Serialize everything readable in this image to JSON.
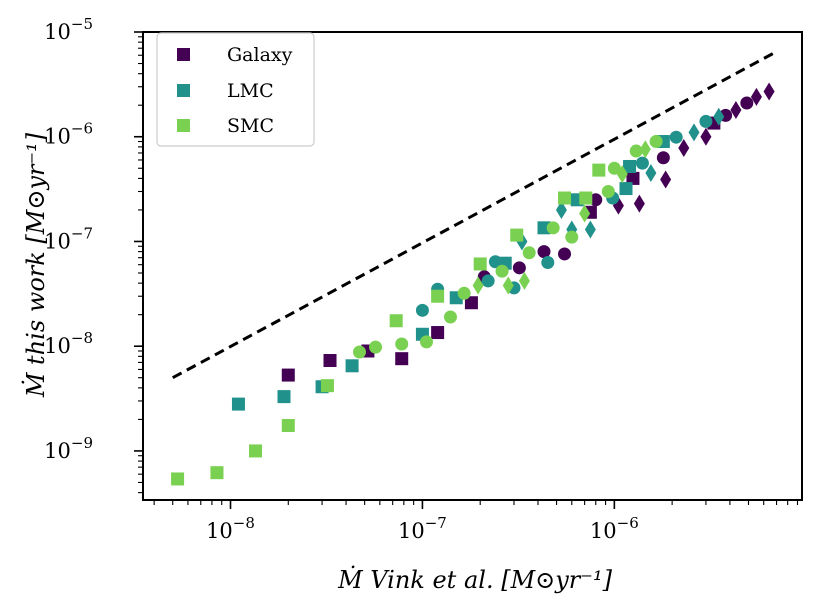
{
  "chart_data": {
    "type": "scatter",
    "title": "",
    "xlabel": "Ṁ Vink et al. [M⊙yr⁻¹]",
    "ylabel": "Ṁ this work [M⊙yr⁻¹]",
    "xscale": "log",
    "yscale": "log",
    "xlim": [
      3.5e-09,
      9.5e-06
    ],
    "ylim": [
      3.4e-10,
      1e-05
    ],
    "x_ticks": [
      {
        "value": 1e-08,
        "mantissa": "10",
        "exponent": "−8"
      },
      {
        "value": 1e-07,
        "mantissa": "10",
        "exponent": "−7"
      },
      {
        "value": 1e-06,
        "mantissa": "10",
        "exponent": "−6"
      }
    ],
    "y_ticks": [
      {
        "value": 1e-09,
        "mantissa": "10",
        "exponent": "−9"
      },
      {
        "value": 1e-08,
        "mantissa": "10",
        "exponent": "−8"
      },
      {
        "value": 1e-07,
        "mantissa": "10",
        "exponent": "−7"
      },
      {
        "value": 1e-06,
        "mantissa": "10",
        "exponent": "−6"
      },
      {
        "value": 1e-05,
        "mantissa": "10",
        "exponent": "−5"
      }
    ],
    "legend": {
      "position": "upper-left",
      "entries": [
        {
          "label": "Galaxy",
          "color": "#440154",
          "marker": "square"
        },
        {
          "label": "LMC",
          "color": "#21918c",
          "marker": "square"
        },
        {
          "label": "SMC",
          "color": "#7ad151",
          "marker": "square"
        }
      ]
    },
    "reference_line": {
      "style": "dashed",
      "color": "#000000",
      "x": [
        5e-09,
        7e-06
      ],
      "y": [
        5e-09,
        6.5e-06
      ]
    },
    "series": [
      {
        "name": "Galaxy",
        "color": "#440154",
        "points": [
          {
            "x": 1.2e-07,
            "y": 1.35e-08,
            "m": "s"
          },
          {
            "x": 1.8e-07,
            "y": 2.6e-08,
            "m": "s"
          },
          {
            "x": 2e-08,
            "y": 5.3e-09,
            "m": "s"
          },
          {
            "x": 3.3e-08,
            "y": 7.3e-09,
            "m": "s"
          },
          {
            "x": 7.8e-08,
            "y": 7.6e-09,
            "m": "s"
          },
          {
            "x": 5.2e-08,
            "y": 9e-09,
            "m": "s"
          },
          {
            "x": 2.1e-07,
            "y": 4.6e-08,
            "m": "o"
          },
          {
            "x": 3.2e-07,
            "y": 5.6e-08,
            "m": "o"
          },
          {
            "x": 4.3e-07,
            "y": 8e-08,
            "m": "o"
          },
          {
            "x": 5.5e-07,
            "y": 7.6e-08,
            "m": "o"
          },
          {
            "x": 7.5e-07,
            "y": 1.9e-07,
            "m": "s"
          },
          {
            "x": 8e-07,
            "y": 2.5e-07,
            "m": "o"
          },
          {
            "x": 1.05e-06,
            "y": 2.2e-07,
            "m": "d"
          },
          {
            "x": 1.25e-06,
            "y": 4e-07,
            "m": "s"
          },
          {
            "x": 1.35e-06,
            "y": 2.3e-07,
            "m": "d"
          },
          {
            "x": 1.8e-06,
            "y": 6.3e-07,
            "m": "o"
          },
          {
            "x": 1.85e-06,
            "y": 3.9e-07,
            "m": "d"
          },
          {
            "x": 2.3e-06,
            "y": 7.8e-07,
            "m": "d"
          },
          {
            "x": 3e-06,
            "y": 1e-06,
            "m": "d"
          },
          {
            "x": 3.3e-06,
            "y": 1.35e-06,
            "m": "s"
          },
          {
            "x": 3.8e-06,
            "y": 1.6e-06,
            "m": "o"
          },
          {
            "x": 4.3e-06,
            "y": 1.8e-06,
            "m": "d"
          },
          {
            "x": 4.9e-06,
            "y": 2.1e-06,
            "m": "o"
          },
          {
            "x": 5.5e-06,
            "y": 2.4e-06,
            "m": "d"
          },
          {
            "x": 6.4e-06,
            "y": 2.7e-06,
            "m": "d"
          }
        ]
      },
      {
        "name": "LMC",
        "color": "#21918c",
        "points": [
          {
            "x": 1.1e-08,
            "y": 2.8e-09,
            "m": "s"
          },
          {
            "x": 1.9e-08,
            "y": 3.3e-09,
            "m": "s"
          },
          {
            "x": 3e-08,
            "y": 4.1e-09,
            "m": "s"
          },
          {
            "x": 4.3e-08,
            "y": 6.5e-09,
            "m": "s"
          },
          {
            "x": 1e-07,
            "y": 1.3e-08,
            "m": "s"
          },
          {
            "x": 1.5e-07,
            "y": 2.9e-08,
            "m": "s"
          },
          {
            "x": 1e-07,
            "y": 2.2e-08,
            "m": "o"
          },
          {
            "x": 1.2e-07,
            "y": 3.5e-08,
            "m": "o"
          },
          {
            "x": 2.2e-07,
            "y": 4.2e-08,
            "m": "o"
          },
          {
            "x": 2.4e-07,
            "y": 6.4e-08,
            "m": "o"
          },
          {
            "x": 2.7e-07,
            "y": 6.2e-08,
            "m": "s"
          },
          {
            "x": 3.3e-07,
            "y": 1e-07,
            "m": "d"
          },
          {
            "x": 3e-07,
            "y": 3.6e-08,
            "m": "o"
          },
          {
            "x": 4.3e-07,
            "y": 1.35e-07,
            "m": "s"
          },
          {
            "x": 4.5e-07,
            "y": 6.3e-08,
            "m": "o"
          },
          {
            "x": 5.3e-07,
            "y": 2e-07,
            "m": "d"
          },
          {
            "x": 6e-07,
            "y": 1.3e-07,
            "m": "d"
          },
          {
            "x": 6.4e-07,
            "y": 2.5e-07,
            "m": "s"
          },
          {
            "x": 7.5e-07,
            "y": 1.3e-07,
            "m": "d"
          },
          {
            "x": 9.8e-07,
            "y": 2.6e-07,
            "m": "o"
          },
          {
            "x": 1.15e-06,
            "y": 3.2e-07,
            "m": "s"
          },
          {
            "x": 1.2e-06,
            "y": 5.2e-07,
            "m": "s"
          },
          {
            "x": 1.4e-06,
            "y": 5.6e-07,
            "m": "o"
          },
          {
            "x": 1.55e-06,
            "y": 4.5e-07,
            "m": "d"
          },
          {
            "x": 1.8e-06,
            "y": 9e-07,
            "m": "s"
          },
          {
            "x": 2.1e-06,
            "y": 9.9e-07,
            "m": "o"
          },
          {
            "x": 2.6e-06,
            "y": 1.1e-06,
            "m": "d"
          },
          {
            "x": 3e-06,
            "y": 1.4e-06,
            "m": "o"
          },
          {
            "x": 3.5e-06,
            "y": 1.55e-06,
            "m": "d"
          }
        ]
      },
      {
        "name": "SMC",
        "color": "#7ad151",
        "points": [
          {
            "x": 5.3e-09,
            "y": 5.4e-10,
            "m": "s"
          },
          {
            "x": 8.5e-09,
            "y": 6.2e-10,
            "m": "s"
          },
          {
            "x": 1.35e-08,
            "y": 1e-09,
            "m": "s"
          },
          {
            "x": 2e-08,
            "y": 1.75e-09,
            "m": "s"
          },
          {
            "x": 3.2e-08,
            "y": 4.2e-09,
            "m": "s"
          },
          {
            "x": 4.7e-08,
            "y": 8.8e-09,
            "m": "o"
          },
          {
            "x": 5.7e-08,
            "y": 9.8e-09,
            "m": "o"
          },
          {
            "x": 7.3e-08,
            "y": 1.75e-08,
            "m": "s"
          },
          {
            "x": 7.8e-08,
            "y": 1.05e-08,
            "m": "o"
          },
          {
            "x": 1.05e-07,
            "y": 1.1e-08,
            "m": "o"
          },
          {
            "x": 1.2e-07,
            "y": 3e-08,
            "m": "s"
          },
          {
            "x": 1.4e-07,
            "y": 1.9e-08,
            "m": "o"
          },
          {
            "x": 1.65e-07,
            "y": 3.2e-08,
            "m": "o"
          },
          {
            "x": 1.95e-07,
            "y": 3.8e-08,
            "m": "d"
          },
          {
            "x": 2e-07,
            "y": 6.1e-08,
            "m": "s"
          },
          {
            "x": 2.6e-07,
            "y": 5.2e-08,
            "m": "o"
          },
          {
            "x": 2.8e-07,
            "y": 3.8e-08,
            "m": "d"
          },
          {
            "x": 3.1e-07,
            "y": 1.15e-07,
            "m": "s"
          },
          {
            "x": 3.4e-07,
            "y": 4.2e-08,
            "m": "d"
          },
          {
            "x": 3.6e-07,
            "y": 7.8e-08,
            "m": "o"
          },
          {
            "x": 4.8e-07,
            "y": 1.35e-07,
            "m": "o"
          },
          {
            "x": 5.5e-07,
            "y": 2.6e-07,
            "m": "s"
          },
          {
            "x": 6e-07,
            "y": 1.1e-07,
            "m": "o"
          },
          {
            "x": 7e-07,
            "y": 1.85e-07,
            "m": "d"
          },
          {
            "x": 7.1e-07,
            "y": 2.6e-07,
            "m": "s"
          },
          {
            "x": 8.3e-07,
            "y": 4.8e-07,
            "m": "s"
          },
          {
            "x": 9.3e-07,
            "y": 3e-07,
            "m": "o"
          },
          {
            "x": 1e-06,
            "y": 5e-07,
            "m": "o"
          },
          {
            "x": 1.1e-06,
            "y": 4.4e-07,
            "m": "d"
          },
          {
            "x": 1.3e-06,
            "y": 7.3e-07,
            "m": "o"
          },
          {
            "x": 1.45e-06,
            "y": 7.6e-07,
            "m": "d"
          },
          {
            "x": 1.65e-06,
            "y": 9e-07,
            "m": "o"
          }
        ]
      }
    ]
  }
}
